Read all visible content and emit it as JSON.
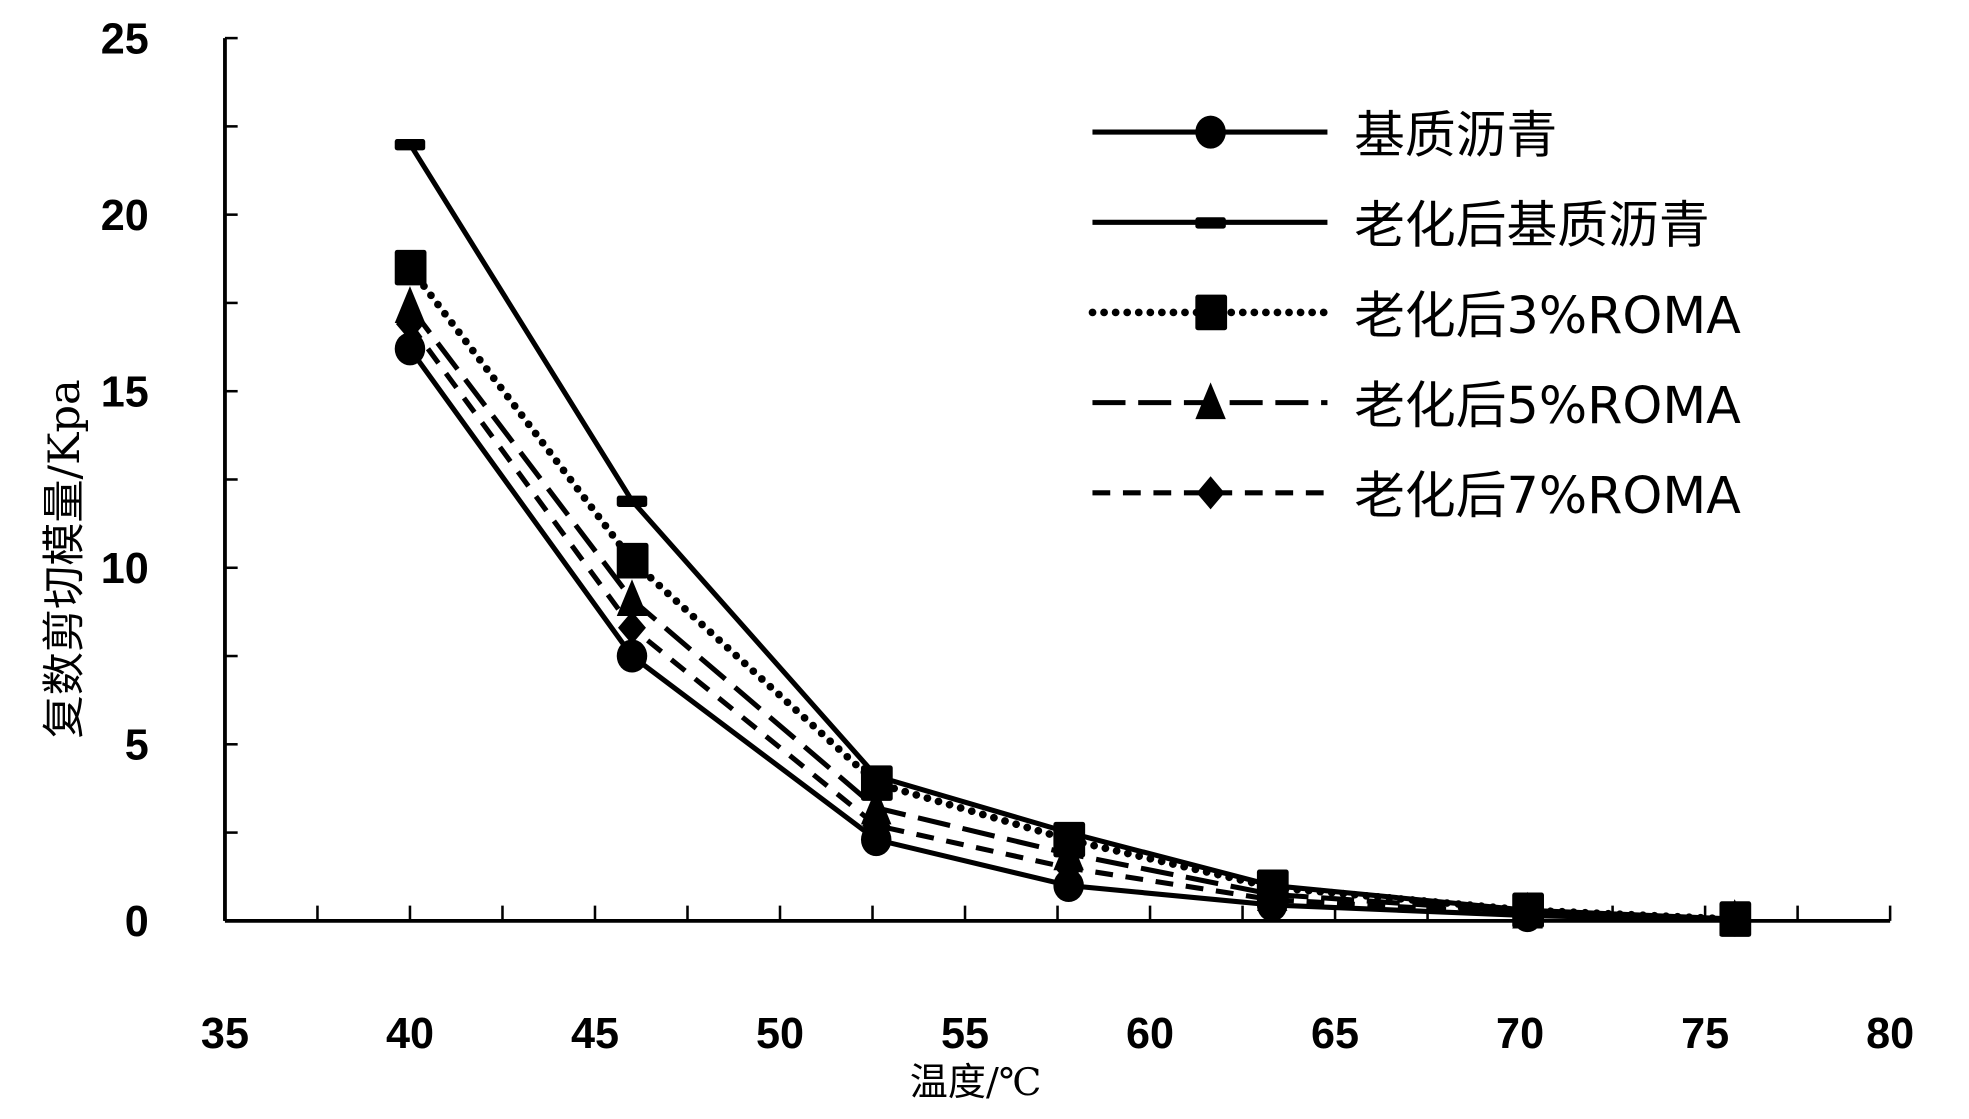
{
  "chart_data": {
    "type": "line",
    "title": "",
    "xlabel": "温度/℃",
    "ylabel": "复数剪切模量/Kpa",
    "xlim": [
      35,
      80
    ],
    "ylim": [
      0,
      25
    ],
    "xticks": [
      35,
      40,
      45,
      50,
      55,
      60,
      65,
      70,
      75,
      80
    ],
    "yticks": [
      0,
      5,
      10,
      15,
      20,
      25
    ],
    "x": [
      40,
      46,
      52.6,
      57.8,
      63.3,
      70.2,
      75.8
    ],
    "legend_position": "top-right",
    "grid": false,
    "series": [
      {
        "name": "基质沥青",
        "marker": "circle",
        "dash": "solid",
        "values": [
          16.2,
          7.5,
          2.3,
          1.0,
          0.45,
          0.15,
          0.02
        ]
      },
      {
        "name": "老化后基质沥青",
        "marker": "dash",
        "dash": "solid",
        "values": [
          22.0,
          11.9,
          4.1,
          2.5,
          1.0,
          0.3,
          0.05
        ]
      },
      {
        "name": "老化后3%ROMA",
        "marker": "square",
        "dash": "dotted",
        "values": [
          18.5,
          10.2,
          3.9,
          2.3,
          0.95,
          0.3,
          0.05
        ]
      },
      {
        "name": "老化后5%ROMA",
        "marker": "triangle",
        "dash": "longdash",
        "values": [
          17.4,
          9.1,
          3.2,
          1.9,
          0.75,
          0.25,
          0.04
        ]
      },
      {
        "name": "老化后7%ROMA",
        "marker": "diamond",
        "dash": "dash",
        "values": [
          16.9,
          8.3,
          2.7,
          1.5,
          0.6,
          0.2,
          0.03
        ]
      }
    ]
  }
}
